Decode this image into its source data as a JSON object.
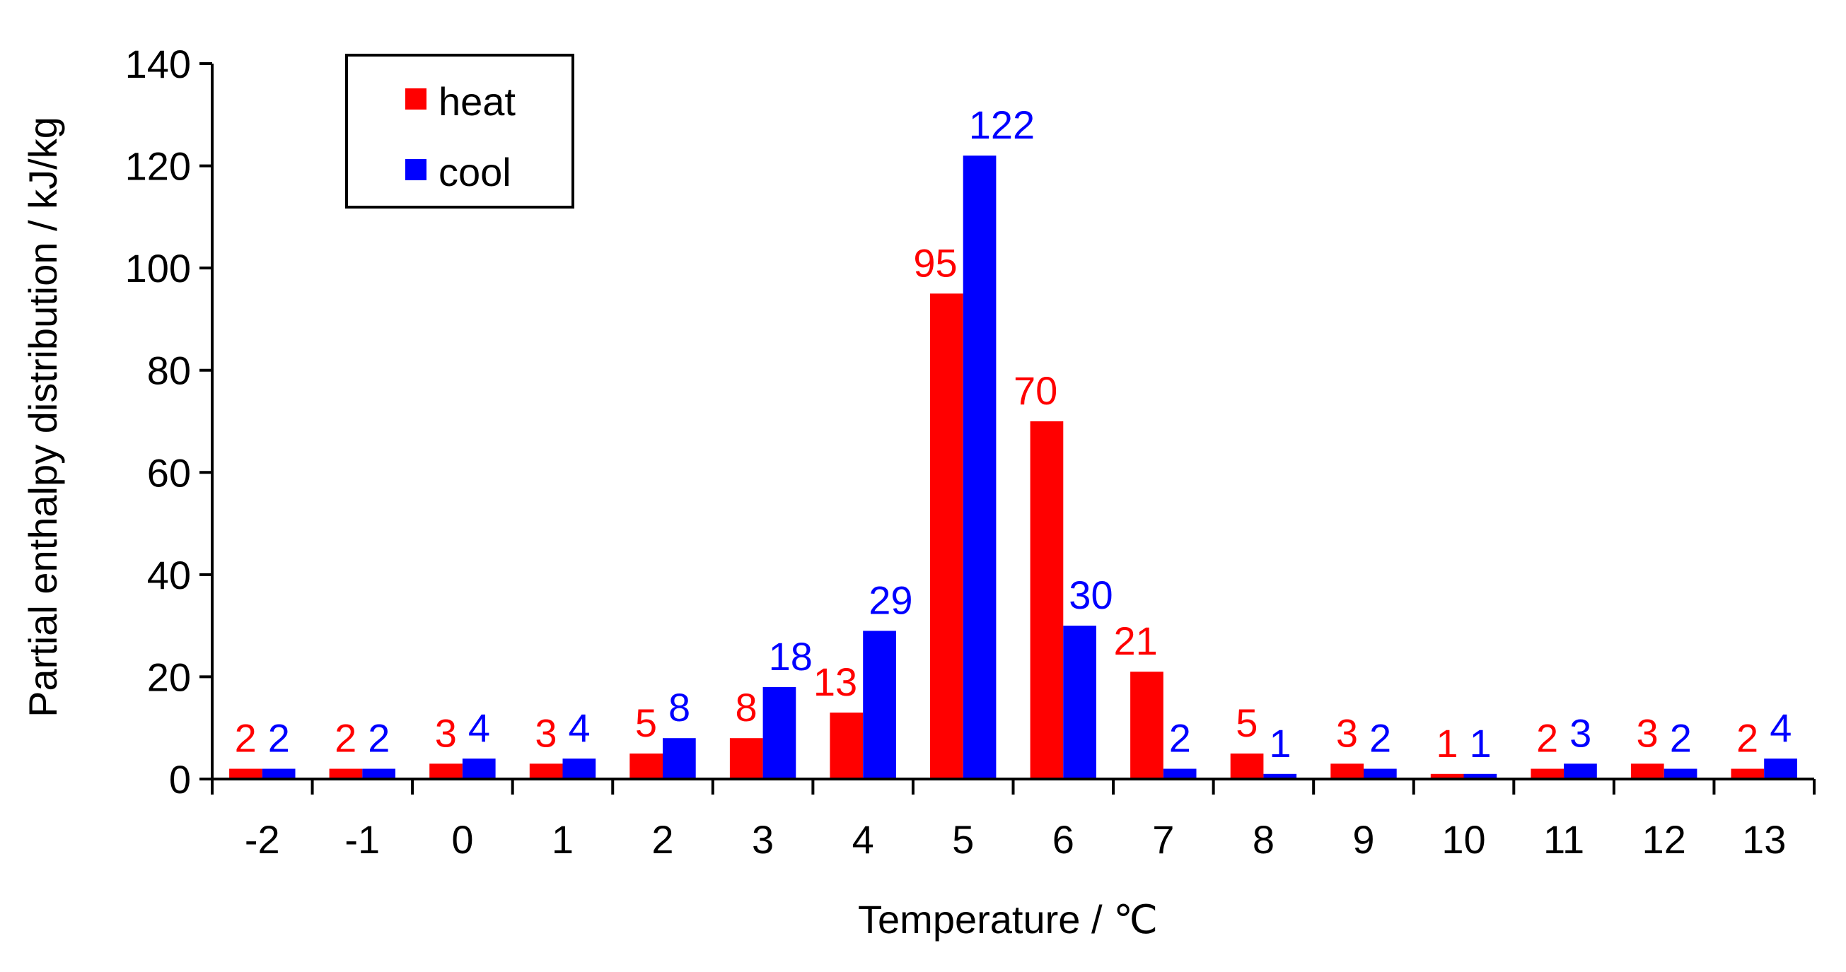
{
  "chart_data": {
    "type": "bar",
    "title": "",
    "xlabel": "Temperature / ℃",
    "ylabel": "Partial enthalpy distribution / kJ/kg",
    "ylim": [
      0,
      140
    ],
    "yticks": [
      "0",
      "20",
      "40",
      "60",
      "80",
      "100",
      "120",
      "140"
    ],
    "categories": [
      "-2",
      "-1",
      "0",
      "1",
      "2",
      "3",
      "4",
      "5",
      "6",
      "7",
      "8",
      "9",
      "10",
      "11",
      "12",
      "13"
    ],
    "grid": false,
    "legend_position": "top-left",
    "series": [
      {
        "name": "heat",
        "color": "#ff0000",
        "values": [
          2,
          2,
          3,
          3,
          5,
          8,
          13,
          95,
          70,
          21,
          5,
          3,
          1,
          2,
          3,
          2
        ],
        "labels": [
          "2",
          "2",
          "3",
          "3",
          "5",
          "8",
          "13",
          "95",
          "70",
          "21",
          "5",
          "3",
          "1",
          "2",
          "3",
          "2"
        ]
      },
      {
        "name": "cool",
        "color": "#0000ff",
        "values": [
          2,
          2,
          4,
          4,
          8,
          18,
          29,
          122,
          30,
          2,
          1,
          2,
          1,
          3,
          2,
          4
        ],
        "labels": [
          "2",
          "2",
          "4",
          "4",
          "8",
          "18",
          "29",
          "122",
          "30",
          "2",
          "1",
          "2",
          "1",
          "3",
          "2",
          "4"
        ]
      }
    ]
  }
}
